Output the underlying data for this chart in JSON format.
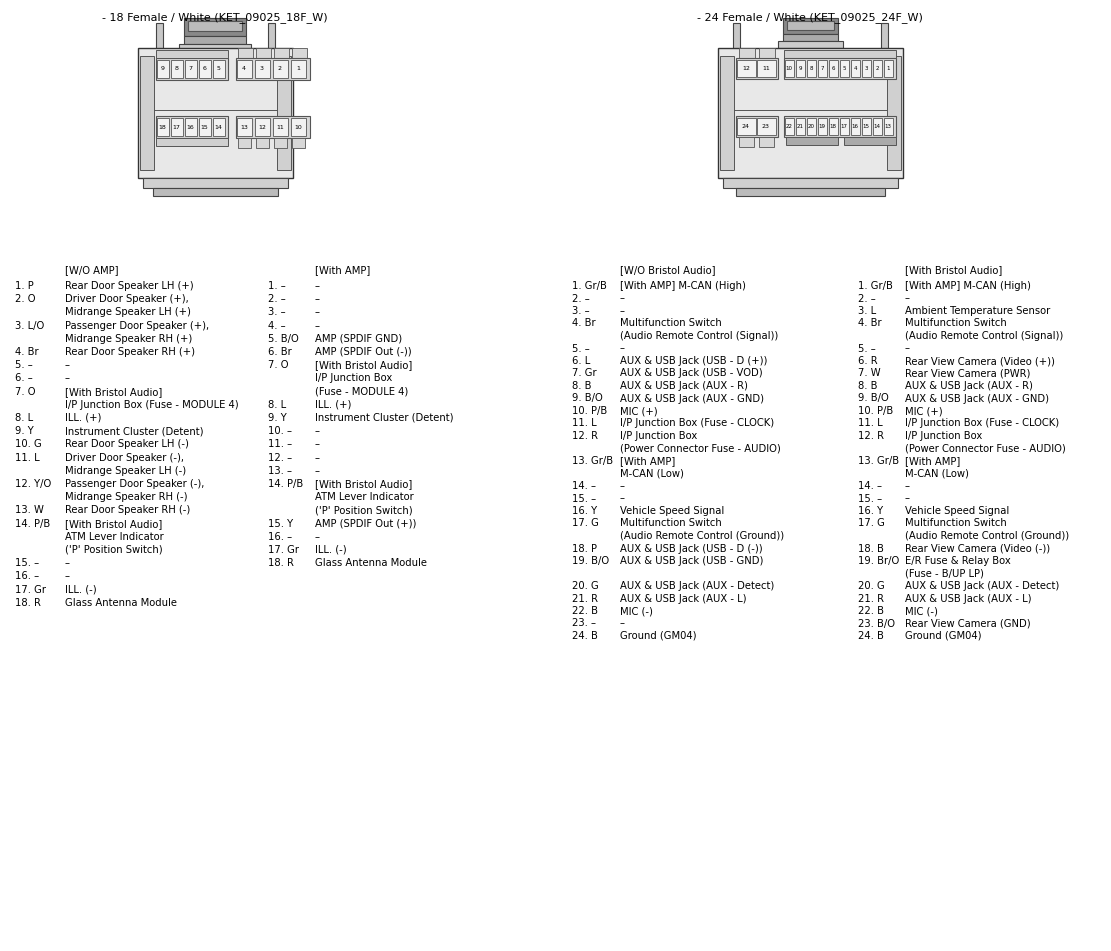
{
  "left_connector_title": "- 18 Female / White (KET_09025_18F_W)",
  "right_connector_title": "- 24 Female / White (KET_09025_24F_W)",
  "bg_color": "#ffffff",
  "text_color": "#000000",
  "font_size": 7.2,
  "left_col1_header": "[W/O AMP]",
  "left_col2_header": "[With AMP]",
  "right_col1_header": "[W/O Bristol Audio]",
  "right_col2_header": "[With Bristol Audio]",
  "left_entries": [
    [
      "1. P",
      "Rear Door Speaker LH (+)",
      "1. –",
      "–"
    ],
    [
      "2. O",
      "Driver Door Speaker (+),",
      "2. –",
      "–"
    ],
    [
      "",
      "Midrange Speaker LH (+)",
      "3. –",
      "–"
    ],
    [
      "3. L/O",
      "Passenger Door Speaker (+),",
      "4. –",
      "–"
    ],
    [
      "",
      "Midrange Speaker RH (+)",
      "5. B/O",
      "AMP (SPDIF GND)"
    ],
    [
      "4. Br",
      "Rear Door Speaker RH (+)",
      "6. Br",
      "AMP (SPDIF Out (-))"
    ],
    [
      "5. –",
      "–",
      "7. O",
      "[With Bristol Audio]"
    ],
    [
      "6. –",
      "–",
      "",
      "I/P Junction Box"
    ],
    [
      "7. O",
      "[With Bristol Audio]",
      "",
      "(Fuse - MODULE 4)"
    ],
    [
      "",
      "I/P Junction Box (Fuse - MODULE 4)",
      "8. L",
      "ILL. (+)"
    ],
    [
      "8. L",
      "ILL. (+)",
      "9. Y",
      "Instrument Cluster (Detent)"
    ],
    [
      "9. Y",
      "Instrument Cluster (Detent)",
      "10. –",
      "–"
    ],
    [
      "10. G",
      "Rear Door Speaker LH (-)",
      "11. –",
      "–"
    ],
    [
      "11. L",
      "Driver Door Speaker (-),",
      "12. –",
      "–"
    ],
    [
      "",
      "Midrange Speaker LH (-)",
      "13. –",
      "–"
    ],
    [
      "12. Y/O",
      "Passenger Door Speaker (-),",
      "14. P/B",
      "[With Bristol Audio]"
    ],
    [
      "",
      "Midrange Speaker RH (-)",
      "",
      "ATM Lever Indicator"
    ],
    [
      "13. W",
      "Rear Door Speaker RH (-)",
      "",
      "('P' Position Switch)"
    ],
    [
      "14. P/B",
      "[With Bristol Audio]",
      "15. Y",
      "AMP (SPDIF Out (+))"
    ],
    [
      "",
      "ATM Lever Indicator",
      "16. –",
      "–"
    ],
    [
      "",
      "('P' Position Switch)",
      "17. Gr",
      "ILL. (-)"
    ],
    [
      "15. –",
      "–",
      "18. R",
      "Glass Antenna Module"
    ],
    [
      "16. –",
      "–",
      "",
      ""
    ],
    [
      "17. Gr",
      "ILL. (-)",
      "",
      ""
    ],
    [
      "18. R",
      "Glass Antenna Module",
      "",
      ""
    ]
  ],
  "right_entries": [
    [
      "1. Gr/B",
      "[With AMP] M-CAN (High)",
      "1. Gr/B",
      "[With AMP] M-CAN (High)"
    ],
    [
      "2. –",
      "–",
      "2. –",
      "–"
    ],
    [
      "3. –",
      "–",
      "3. L",
      "Ambient Temperature Sensor"
    ],
    [
      "4. Br",
      "Multifunction Switch",
      "4. Br",
      "Multifunction Switch"
    ],
    [
      "",
      "(Audio Remote Control (Signal))",
      "",
      "(Audio Remote Control (Signal))"
    ],
    [
      "5. –",
      "–",
      "5. –",
      "–"
    ],
    [
      "6. L",
      "AUX & USB Jack (USB - D (+))",
      "6. R",
      "Rear View Camera (Video (+))"
    ],
    [
      "7. Gr",
      "AUX & USB Jack (USB - VOD)",
      "7. W",
      "Rear View Camera (PWR)"
    ],
    [
      "8. B",
      "AUX & USB Jack (AUX - R)",
      "8. B",
      "AUX & USB Jack (AUX - R)"
    ],
    [
      "9. B/O",
      "AUX & USB Jack (AUX - GND)",
      "9. B/O",
      "AUX & USB Jack (AUX - GND)"
    ],
    [
      "10. P/B",
      "MIC (+)",
      "10. P/B",
      "MIC (+)"
    ],
    [
      "11. L",
      "I/P Junction Box (Fuse - CLOCK)",
      "11. L",
      "I/P Junction Box (Fuse - CLOCK)"
    ],
    [
      "12. R",
      "I/P Junction Box",
      "12. R",
      "I/P Junction Box"
    ],
    [
      "",
      "(Power Connector Fuse - AUDIO)",
      "",
      "(Power Connector Fuse - AUDIO)"
    ],
    [
      "13. Gr/B",
      "[With AMP]",
      "13. Gr/B",
      "[With AMP]"
    ],
    [
      "",
      "M-CAN (Low)",
      "",
      "M-CAN (Low)"
    ],
    [
      "14. –",
      "–",
      "14. –",
      "–"
    ],
    [
      "15. –",
      "–",
      "15. –",
      "–"
    ],
    [
      "16. Y",
      "Vehicle Speed Signal",
      "16. Y",
      "Vehicle Speed Signal"
    ],
    [
      "17. G",
      "Multifunction Switch",
      "17. G",
      "Multifunction Switch"
    ],
    [
      "",
      "(Audio Remote Control (Ground))",
      "",
      "(Audio Remote Control (Ground))"
    ],
    [
      "18. P",
      "AUX & USB Jack (USB - D (-))",
      "18. B",
      "Rear View Camera (Video (-))"
    ],
    [
      "19. B/O",
      "AUX & USB Jack (USB - GND)",
      "19. Br/O",
      "E/R Fuse & Relay Box"
    ],
    [
      "",
      "",
      "",
      "(Fuse - B/UP LP)"
    ],
    [
      "20. G",
      "AUX & USB Jack (AUX - Detect)",
      "20. G",
      "AUX & USB Jack (AUX - Detect)"
    ],
    [
      "21. R",
      "AUX & USB Jack (AUX - L)",
      "21. R",
      "AUX & USB Jack (AUX - L)"
    ],
    [
      "22. B",
      "MIC (-)",
      "22. B",
      "MIC (-)"
    ],
    [
      "23. –",
      "–",
      "23. B/O",
      "Rear View Camera (GND)"
    ],
    [
      "24. B",
      "Ground (GM04)",
      "24. B",
      "Ground (GM04)"
    ]
  ]
}
